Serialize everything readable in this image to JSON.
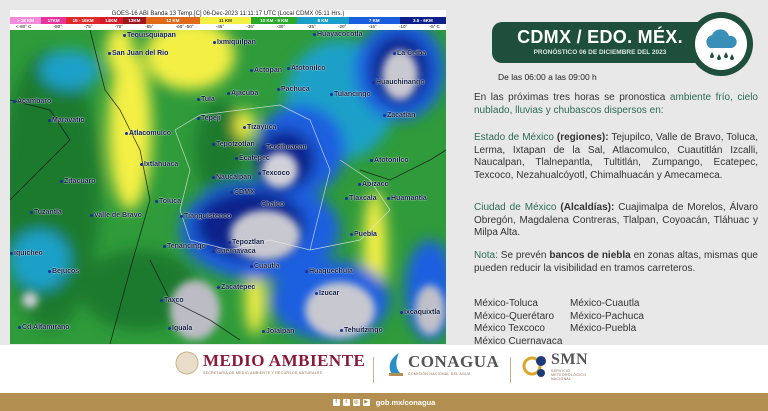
{
  "map": {
    "title": "GOES-16 ABI Banda 13 Temp.[C] 06-Dec-2023 11:11:17 UTC (Local CDMX  05:11 Hrs.)",
    "legend": [
      {
        "label": "> 18 KM",
        "color": "#f48ad8"
      },
      {
        "label": "17KM",
        "color": "#e8339b"
      },
      {
        "label": "15 - 16KM",
        "color": "#e02a2a"
      },
      {
        "label": "14KM",
        "color": "#d61b2a"
      },
      {
        "label": "13KM",
        "color": "#a01620"
      },
      {
        "label": "12 KM",
        "color": "#e06a1a"
      },
      {
        "label": "11 KM",
        "color": "#f5f044"
      },
      {
        "label": "10 KM - 9 KM",
        "color": "#2aa82a"
      },
      {
        "label": "8 KM",
        "color": "#1aa0c8"
      },
      {
        "label": "7 KM",
        "color": "#1a5ee0"
      },
      {
        "label": "3.5 - 6KM",
        "color": "#10208a"
      }
    ],
    "ticks": [
      "<-80° C",
      "-80°",
      "-75°",
      "-70°",
      "-65°",
      "-60° -50°",
      "-45°",
      "-35°",
      "-30°",
      "-25°",
      "-20°",
      "-15°",
      "-10°",
      "-5° C"
    ],
    "places": [
      "Tequisquiapan",
      "Ixmiquilpan",
      "Huayacocotla",
      "San Juan del Rio",
      "La Ceiba",
      "Actopan",
      "Atotonilco",
      "Huauchinango",
      "Acambaro",
      "Tula",
      "Ajacuba",
      "Pachuca",
      "Tulancingo",
      "Zacatlan",
      "Maravatio",
      "Tepeji",
      "Tizayuca",
      "Atlacomulco",
      "Tepotzotlan",
      "Teotihuacan",
      "Atotonilco",
      "Ixtlahuaca",
      "Ecatepec",
      "Naucalpan",
      "Texcoco",
      "Zitacuaro",
      "Apizaco",
      "CDMX",
      "Toluca",
      "Chalco",
      "Tlaxcala",
      "Huamantla",
      "Tuzantla",
      "Valle de Bravo",
      "Tianguistenco",
      "Puebla",
      "Tepoztlan",
      "Tenancingo",
      "Cuernavaca",
      "Bejucos",
      "Cuautla",
      "Huaquechula",
      "iquicheo",
      "Zacatepec",
      "Izucar",
      "Taxco",
      "Ixcaquixtla",
      "Cd Altamirano",
      "Iguala",
      "Jolalpan",
      "Tehuitzingo"
    ]
  },
  "panel": {
    "title": "CDMX / EDO. MÉX.",
    "subtitle": "PRONÓSTICO 06 DE DICIEMBRE DEL 2023",
    "icon": "rain-cloud-icon",
    "time_range": "De las 06:00 a las 09:00 h",
    "intro_a": "En las próximas tres horas se pronostica ",
    "intro_b": "ambiente frío, cielo nublado, lluvias y chubascos dispersos en:",
    "edomex_label": "Estado de México",
    "edomex_paren": " (regiones):",
    "edomex_list": " Tejupilco, Valle de Bravo, Toluca, Lerma, Ixtapan de la Sal, Atlacomulco, Cuautitlán Izcalli, Naucalpan, Tlalnepantla, Tultitlán, Zumpango, Ecatepec, Texcoco, Nezahualcóyotl, Chimalhuacán y Amecameca.",
    "cdmx_label": "Ciudad de México",
    "cdmx_paren": " (Alcaldías):",
    "cdmx_list": " Cuajimalpa de Morelos, Álvaro Obregón, Magdalena Contreras, Tlalpan, Coyoacán, Tláhuac y Milpa Alta.",
    "nota_label": "Nota:",
    "nota_a": " Se prevén ",
    "nota_b": "bancos de niebla",
    "nota_c": " en zonas altas, mismas que pueden reducir la visibilidad en tramos carreteros.",
    "routes": [
      "México-Toluca",
      "México-Cuautla",
      "México-Querétaro",
      "México-Pachuca",
      "México Texcoco",
      "México-Puebla",
      "México Cuernavaca",
      ""
    ]
  },
  "footer": {
    "medio_ambiente": "MEDIO AMBIENTE",
    "medio_ambiente_sub": "SECRETARÍA DE MEDIO AMBIENTE Y RECURSOS NATURALES",
    "conagua": "CONAGUA",
    "conagua_sub": "COMISIÓN NACIONAL DEL AGUA",
    "smn": "SMN",
    "smn_sub": "SERVICIO METEOROLÓGICO NACIONAL",
    "url": "gob.mx/conagua",
    "brand_gold": "#b48f52",
    "brand_green": "#1e4e3c"
  }
}
